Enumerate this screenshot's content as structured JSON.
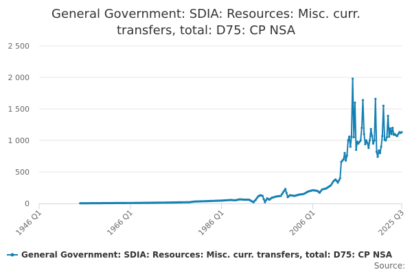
{
  "chart_data": {
    "type": "line",
    "title_line1": "General Government: SDIA: Resources: Misc. curr.",
    "title_line2": "transfers, total: D75: CP NSA",
    "x_ticks": [
      "1946 Q1",
      "1966 Q1",
      "1986 Q1",
      "2006 Q1",
      "2025 Q3"
    ],
    "y_ticks": [
      "0",
      "500",
      "1 000",
      "1 500",
      "2 000",
      "2 500"
    ],
    "ylim": [
      0,
      2500
    ],
    "xlim": [
      1946.0,
      2025.5
    ],
    "grid": true,
    "legend_position": "bottom",
    "line_color": "#1580b3",
    "series": [
      {
        "name": "General Government: SDIA: Resources: Misc. curr. transfers, total: D75: CP NSA",
        "points": [
          [
            1955.0,
            3
          ],
          [
            1960.0,
            5
          ],
          [
            1965.0,
            7
          ],
          [
            1970.0,
            10
          ],
          [
            1975.0,
            15
          ],
          [
            1979.0,
            20
          ],
          [
            1980.0,
            30
          ],
          [
            1982.0,
            35
          ],
          [
            1984.0,
            40
          ],
          [
            1986.0,
            45
          ],
          [
            1988.0,
            55
          ],
          [
            1989.0,
            50
          ],
          [
            1990.0,
            65
          ],
          [
            1991.0,
            60
          ],
          [
            1992.0,
            60
          ],
          [
            1993.0,
            20
          ],
          [
            1993.5,
            60
          ],
          [
            1994.0,
            110
          ],
          [
            1994.5,
            130
          ],
          [
            1995.0,
            120
          ],
          [
            1995.5,
            20
          ],
          [
            1996.0,
            80
          ],
          [
            1996.5,
            60
          ],
          [
            1997.0,
            90
          ],
          [
            1998.0,
            110
          ],
          [
            1999.0,
            120
          ],
          [
            2000.0,
            230
          ],
          [
            2000.5,
            100
          ],
          [
            2001.0,
            130
          ],
          [
            2002.0,
            120
          ],
          [
            2003.0,
            140
          ],
          [
            2004.0,
            150
          ],
          [
            2005.0,
            190
          ],
          [
            2006.0,
            210
          ],
          [
            2007.0,
            200
          ],
          [
            2007.5,
            170
          ],
          [
            2008.0,
            220
          ],
          [
            2009.0,
            240
          ],
          [
            2010.0,
            290
          ],
          [
            2010.5,
            350
          ],
          [
            2011.0,
            380
          ],
          [
            2011.5,
            330
          ],
          [
            2012.0,
            400
          ],
          [
            2012.25,
            660
          ],
          [
            2012.75,
            700
          ],
          [
            2013.0,
            800
          ],
          [
            2013.25,
            680
          ],
          [
            2013.5,
            760
          ],
          [
            2013.75,
            1000
          ],
          [
            2014.0,
            1060
          ],
          [
            2014.25,
            900
          ],
          [
            2014.5,
            1060
          ],
          [
            2014.75,
            1980
          ],
          [
            2015.0,
            1050
          ],
          [
            2015.25,
            1600
          ],
          [
            2015.5,
            850
          ],
          [
            2015.75,
            980
          ],
          [
            2016.0,
            950
          ],
          [
            2016.5,
            1000
          ],
          [
            2016.75,
            1200
          ],
          [
            2017.0,
            1640
          ],
          [
            2017.25,
            1100
          ],
          [
            2017.5,
            940
          ],
          [
            2017.75,
            1000
          ],
          [
            2018.0,
            960
          ],
          [
            2018.25,
            880
          ],
          [
            2018.5,
            1000
          ],
          [
            2018.75,
            1180
          ],
          [
            2019.0,
            1070
          ],
          [
            2019.25,
            950
          ],
          [
            2019.5,
            1000
          ],
          [
            2019.75,
            1660
          ],
          [
            2020.0,
            820
          ],
          [
            2020.25,
            740
          ],
          [
            2020.5,
            840
          ],
          [
            2020.75,
            800
          ],
          [
            2021.0,
            900
          ],
          [
            2021.25,
            1070
          ],
          [
            2021.5,
            1550
          ],
          [
            2021.75,
            1010
          ],
          [
            2022.0,
            1000
          ],
          [
            2022.25,
            1050
          ],
          [
            2022.5,
            1390
          ],
          [
            2022.75,
            1060
          ],
          [
            2023.0,
            1190
          ],
          [
            2023.25,
            1100
          ],
          [
            2023.5,
            1200
          ],
          [
            2023.75,
            1090
          ],
          [
            2024.0,
            1100
          ],
          [
            2024.25,
            1080
          ],
          [
            2024.5,
            1070
          ],
          [
            2024.75,
            1100
          ],
          [
            2025.0,
            1130
          ],
          [
            2025.25,
            1120
          ],
          [
            2025.5,
            1130
          ]
        ]
      }
    ]
  },
  "legend": {
    "label": "General Government: SDIA: Resources: Misc. curr. transfers, total: D75: CP NSA"
  },
  "source_label": "Source:"
}
